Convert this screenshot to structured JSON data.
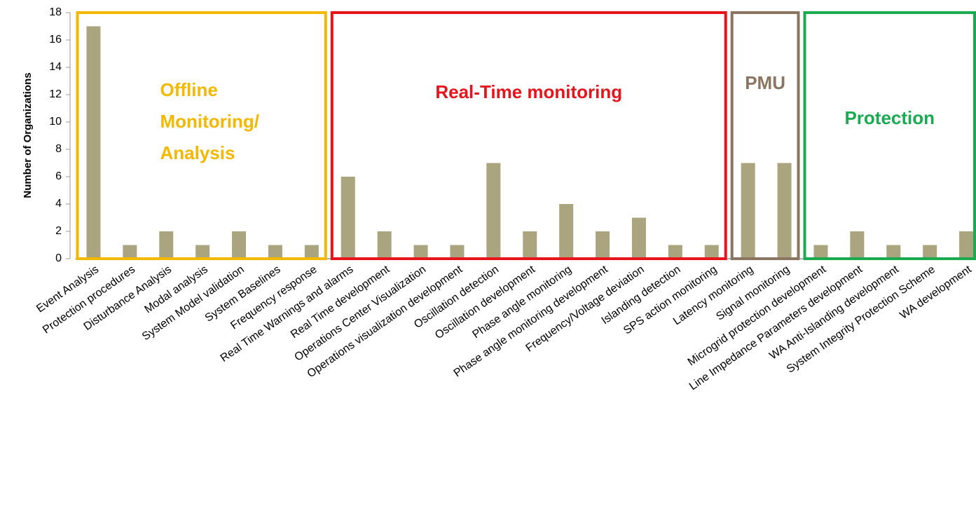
{
  "chart_data": {
    "type": "bar",
    "y_label": "Number of Organizations",
    "categories": [
      "Event Analysis",
      "Protection procedures",
      "Disturbance Analysis",
      "Modal analysis",
      "System Model validation",
      "System Baselines",
      "Frequency response",
      "Real Time Warnings and alarms",
      "Real Time development",
      "Operations Center Visualization",
      "Operations visualization development",
      "Oscillation detection",
      "Oscillation development",
      "Phase angle monitoring",
      "Phase angle monitoring development",
      "Frequency/Voltage deviation",
      "Islanding detection",
      "SPS action monitoring",
      "Latency monitoring",
      "Signal monitoring",
      "Microgrid protection development",
      "Line Impedance Parameters development",
      "WA Anti-Islanding development",
      "System Integrity Protection Scheme",
      "WA development"
    ],
    "values": [
      17,
      1,
      2,
      1,
      2,
      1,
      1,
      6,
      2,
      1,
      1,
      7,
      2,
      4,
      2,
      3,
      1,
      1,
      7,
      7,
      1,
      2,
      1,
      1,
      2
    ],
    "color": "#aba57f",
    "ylim": [
      0,
      18
    ],
    "yticks": [
      0,
      2,
      4,
      6,
      8,
      10,
      12,
      14,
      16,
      18
    ],
    "groups": [
      {
        "lines": [
          "Offline",
          "Monitoring/",
          "Analysis"
        ],
        "color": "#f5b800",
        "start": 0,
        "end": 6
      },
      {
        "lines": [
          "Real-Time monitoring"
        ],
        "color": "#e8141c",
        "start": 7,
        "end": 17
      },
      {
        "lines": [
          "PMU"
        ],
        "color": "#8b7560",
        "start": 18,
        "end": 19
      },
      {
        "lines": [
          "Protection"
        ],
        "color": "#1aaa50",
        "start": 20,
        "end": 24
      }
    ]
  }
}
